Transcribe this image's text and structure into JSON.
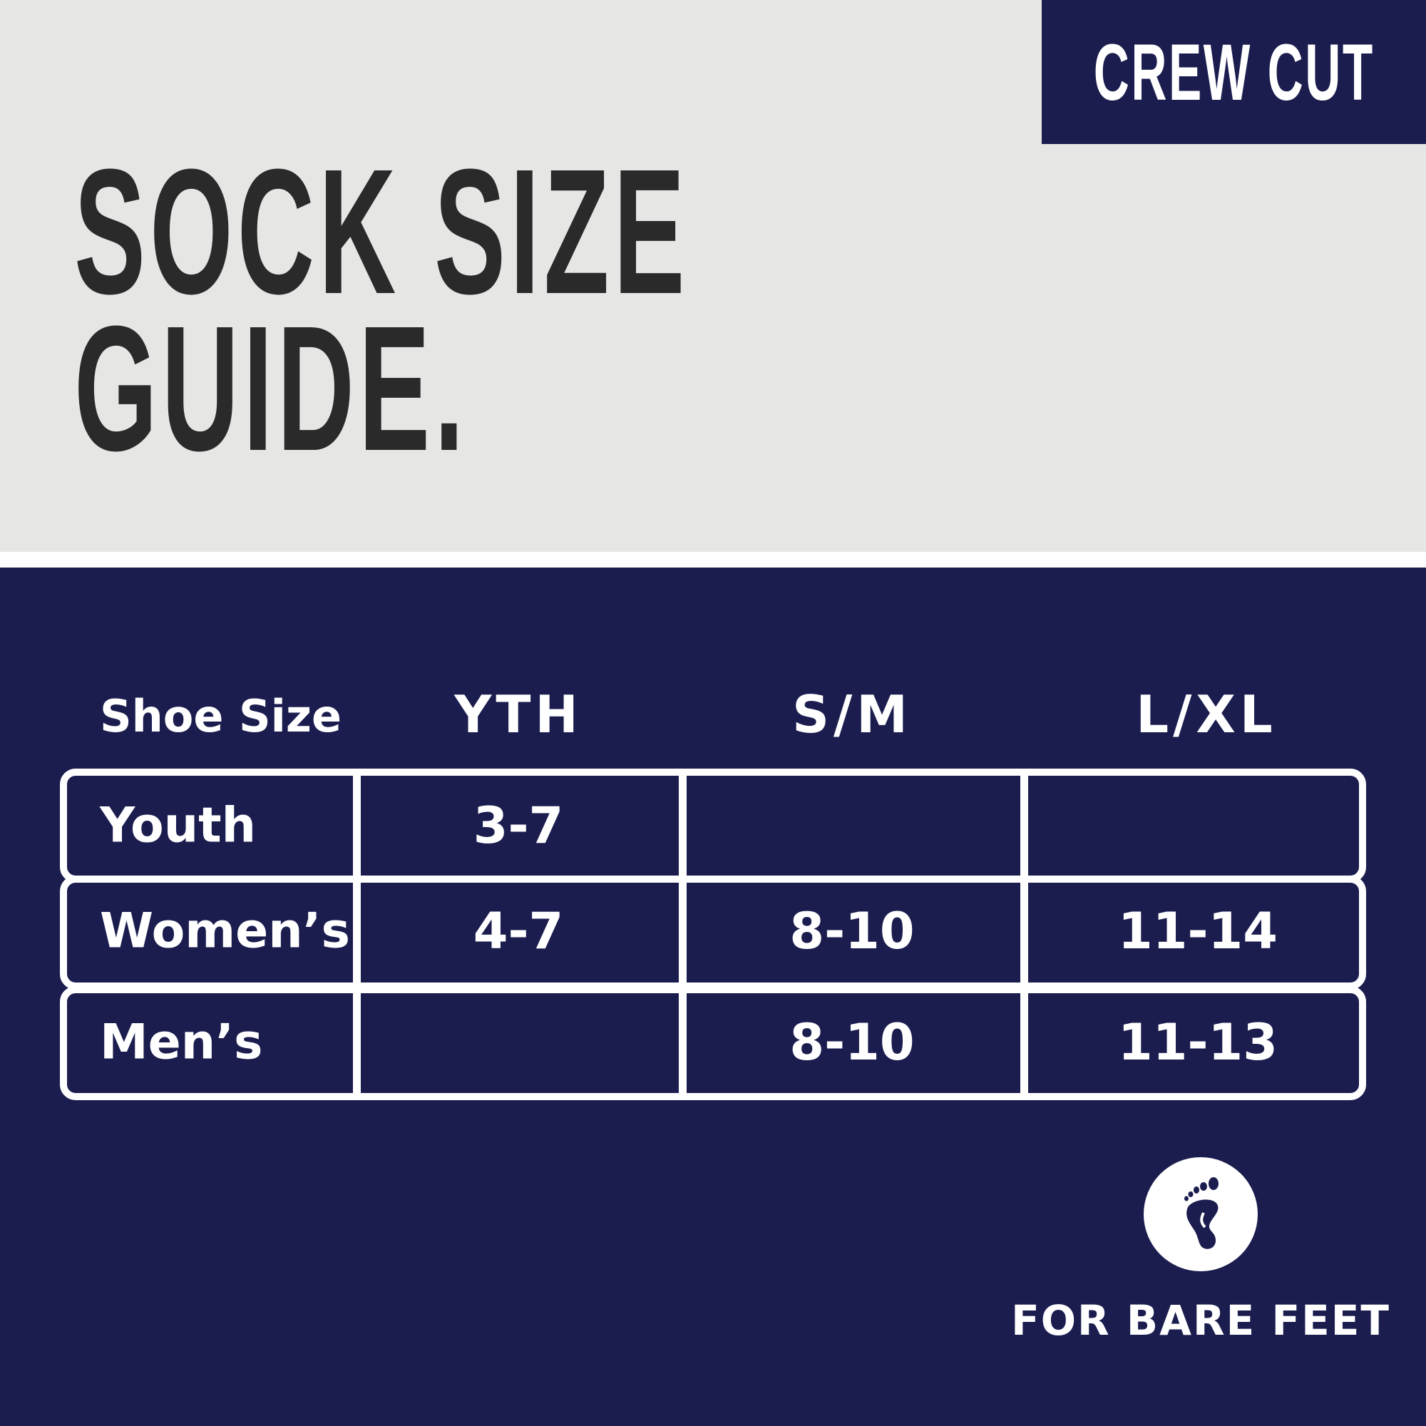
{
  "brand": {
    "label": "CREW CUT"
  },
  "title": {
    "line1": "SOCK SIZE",
    "line2": "GUIDE."
  },
  "table": {
    "row_header_label": "Shoe Size",
    "columns": [
      "YTH",
      "S/M",
      "L/XL"
    ],
    "rows": [
      {
        "label": "Youth",
        "cells": [
          "3-7",
          "",
          ""
        ]
      },
      {
        "label": "Women’s",
        "cells": [
          "4-7",
          "8-10",
          "11-14"
        ]
      },
      {
        "label": "Men’s",
        "cells": [
          "",
          "8-10",
          "11-13"
        ]
      }
    ]
  },
  "badge": {
    "icon": "bare-foot-icon",
    "label": "FOR BARE FEET"
  },
  "colors": {
    "navy": "#1b1d4f",
    "light_gray": "#e6e6e4",
    "title_text": "#2a2a2a"
  }
}
